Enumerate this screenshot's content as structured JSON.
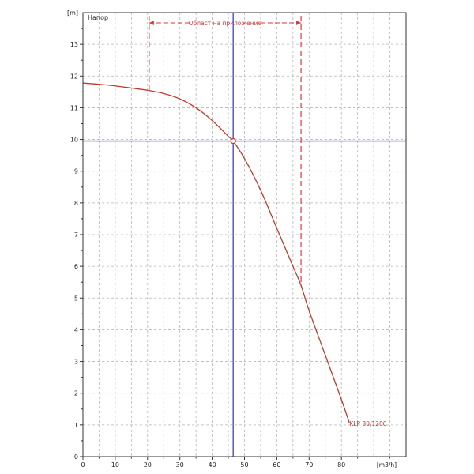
{
  "chart_data": {
    "type": "line",
    "title": "Напор",
    "y_unit_label": "[m]",
    "x_unit_label": "[m3/h]",
    "xlim": [
      0,
      100
    ],
    "ylim": [
      0,
      14
    ],
    "grid": true,
    "x_ticks": [
      0,
      10,
      20,
      30,
      40,
      50,
      60,
      70,
      80
    ],
    "y_ticks": [
      0,
      1,
      2,
      3,
      4,
      5,
      6,
      7,
      8,
      9,
      10,
      11,
      12,
      13
    ],
    "series": [
      {
        "name": "KLP 80/1200",
        "color": "#c0392b",
        "x": [
          0,
          5,
          10,
          15,
          20,
          25,
          30,
          35,
          40,
          45,
          46.5,
          50,
          55,
          60,
          65,
          67.5,
          70,
          75,
          80,
          82.5
        ],
        "y": [
          11.78,
          11.74,
          11.69,
          11.62,
          11.55,
          11.45,
          11.28,
          11.0,
          10.6,
          10.1,
          9.95,
          9.4,
          8.4,
          7.2,
          6.0,
          5.4,
          4.6,
          3.2,
          1.8,
          1.05
        ]
      }
    ],
    "operating_point": {
      "x": 46.5,
      "y": 9.95,
      "color": "#c0392b"
    },
    "crosshair": {
      "x": 46.5,
      "y": 9.95,
      "color": "#4b4fbf"
    },
    "application_range": {
      "label": "Област на приложение",
      "x_start": 20.5,
      "x_end": 67.5,
      "color": "#d63a3a"
    }
  }
}
